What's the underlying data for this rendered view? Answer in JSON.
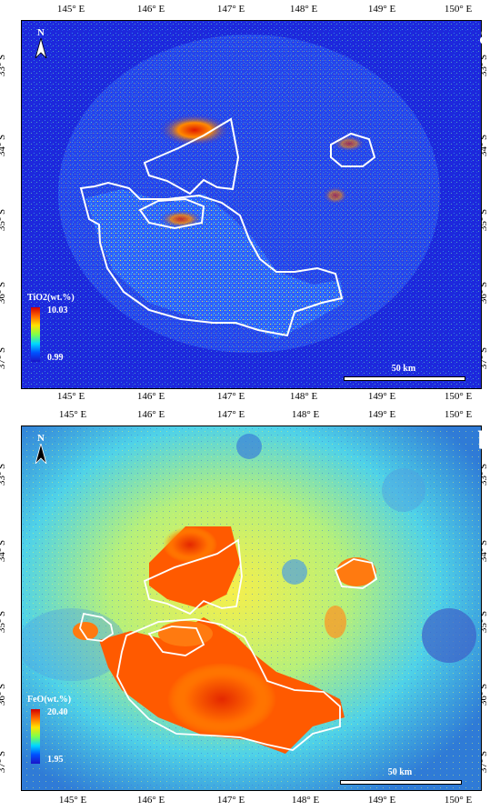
{
  "panels": {
    "a": {
      "letter": "a",
      "north": "N",
      "legend_title": "TiO2(wt.%)",
      "legend_max": "10.03",
      "legend_min": "0.99",
      "scale_label": "50 km"
    },
    "b": {
      "letter": "b",
      "north": "N",
      "legend_title": "FeO(wt.%)",
      "legend_max": "20.40",
      "legend_min": "1.95",
      "scale_label": "50 km"
    }
  },
  "lon_labels": [
    "145° E",
    "146° E",
    "147° E",
    "148° E",
    "149° E",
    "150° E"
  ],
  "lat_labels": [
    "33° S",
    "34° S",
    "35° S",
    "36° S",
    "37° S"
  ],
  "colors": {
    "boundary": "#ffffff",
    "ramp_high": "#d10000",
    "ramp_low": "#1a14c8"
  }
}
